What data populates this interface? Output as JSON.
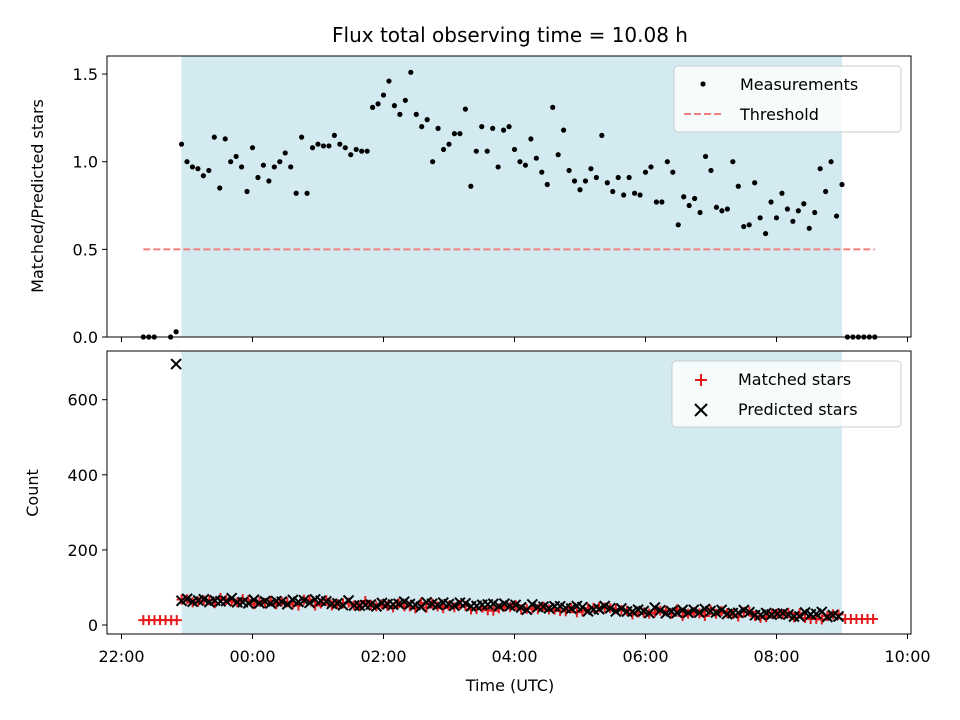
{
  "chart_data": [
    {
      "type": "scatter",
      "title": "Flux total observing time = 10.08 h",
      "xlabel": "",
      "ylabel": "Matched/Predicted stars",
      "xlim": [
        "22:00",
        "10:00"
      ],
      "ylim": [
        0,
        1.6
      ],
      "yticks": [
        "0.0",
        "0.5",
        "1.0",
        "1.5"
      ],
      "shaded_interval": [
        "22:55",
        "09:00"
      ],
      "shade_color": "#d3eaf1",
      "legend_placement": "upper-right",
      "threshold": {
        "name": "Threshold",
        "value": 0.5,
        "x_range": [
          "22:20",
          "09:30"
        ],
        "color": "#f08080"
      },
      "series": [
        {
          "name": "Measurements",
          "color": "#000000",
          "points": [
            [
              "22:20",
              0.0
            ],
            [
              "22:25",
              0.0
            ],
            [
              "22:30",
              0.0
            ],
            [
              "22:45",
              0.0
            ],
            [
              "22:50",
              0.03
            ],
            [
              "22:55",
              1.1
            ],
            [
              "23:00",
              1.0
            ],
            [
              "23:05",
              0.97
            ],
            [
              "23:10",
              0.96
            ],
            [
              "23:15",
              0.92
            ],
            [
              "23:20",
              0.95
            ],
            [
              "23:25",
              1.14
            ],
            [
              "23:30",
              0.85
            ],
            [
              "23:35",
              1.13
            ],
            [
              "23:40",
              1.0
            ],
            [
              "23:45",
              1.03
            ],
            [
              "23:50",
              0.97
            ],
            [
              "23:55",
              0.83
            ],
            [
              "00:00",
              1.08
            ],
            [
              "00:05",
              0.91
            ],
            [
              "00:10",
              0.98
            ],
            [
              "00:15",
              0.89
            ],
            [
              "00:20",
              0.97
            ],
            [
              "00:25",
              1.0
            ],
            [
              "00:30",
              1.05
            ],
            [
              "00:35",
              0.97
            ],
            [
              "00:40",
              0.82
            ],
            [
              "00:45",
              1.14
            ],
            [
              "00:50",
              0.82
            ],
            [
              "00:55",
              1.08
            ],
            [
              "01:00",
              1.1
            ],
            [
              "01:05",
              1.09
            ],
            [
              "01:10",
              1.09
            ],
            [
              "01:15",
              1.15
            ],
            [
              "01:20",
              1.1
            ],
            [
              "01:25",
              1.08
            ],
            [
              "01:30",
              1.04
            ],
            [
              "01:35",
              1.07
            ],
            [
              "01:40",
              1.06
            ],
            [
              "01:45",
              1.06
            ],
            [
              "01:50",
              1.31
            ],
            [
              "01:55",
              1.33
            ],
            [
              "02:00",
              1.38
            ],
            [
              "02:05",
              1.46
            ],
            [
              "02:10",
              1.32
            ],
            [
              "02:15",
              1.27
            ],
            [
              "02:20",
              1.35
            ],
            [
              "02:25",
              1.51
            ],
            [
              "02:30",
              1.27
            ],
            [
              "02:35",
              1.2
            ],
            [
              "02:40",
              1.24
            ],
            [
              "02:45",
              1.0
            ],
            [
              "02:50",
              1.19
            ],
            [
              "02:55",
              1.07
            ],
            [
              "03:00",
              1.1
            ],
            [
              "03:05",
              1.16
            ],
            [
              "03:10",
              1.16
            ],
            [
              "03:15",
              1.3
            ],
            [
              "03:20",
              0.86
            ],
            [
              "03:25",
              1.06
            ],
            [
              "03:30",
              1.2
            ],
            [
              "03:35",
              1.06
            ],
            [
              "03:40",
              1.19
            ],
            [
              "03:45",
              0.97
            ],
            [
              "03:50",
              1.18
            ],
            [
              "03:55",
              1.2
            ],
            [
              "04:00",
              1.07
            ],
            [
              "04:05",
              1.0
            ],
            [
              "04:10",
              0.98
            ],
            [
              "04:15",
              1.13
            ],
            [
              "04:20",
              1.02
            ],
            [
              "04:25",
              0.94
            ],
            [
              "04:30",
              0.87
            ],
            [
              "04:35",
              1.31
            ],
            [
              "04:40",
              1.04
            ],
            [
              "04:45",
              1.18
            ],
            [
              "04:50",
              0.95
            ],
            [
              "04:55",
              0.89
            ],
            [
              "05:00",
              0.84
            ],
            [
              "05:05",
              0.89
            ],
            [
              "05:10",
              0.96
            ],
            [
              "05:15",
              0.91
            ],
            [
              "05:20",
              1.15
            ],
            [
              "05:25",
              0.88
            ],
            [
              "05:30",
              0.83
            ],
            [
              "05:35",
              0.91
            ],
            [
              "05:40",
              0.81
            ],
            [
              "05:45",
              0.91
            ],
            [
              "05:50",
              0.82
            ],
            [
              "05:55",
              0.81
            ],
            [
              "06:00",
              0.94
            ],
            [
              "06:05",
              0.97
            ],
            [
              "06:10",
              0.77
            ],
            [
              "06:15",
              0.77
            ],
            [
              "06:20",
              1.0
            ],
            [
              "06:25",
              0.94
            ],
            [
              "06:30",
              0.64
            ],
            [
              "06:35",
              0.8
            ],
            [
              "06:40",
              0.75
            ],
            [
              "06:45",
              0.79
            ],
            [
              "06:50",
              0.71
            ],
            [
              "06:55",
              1.03
            ],
            [
              "07:00",
              0.95
            ],
            [
              "07:05",
              0.74
            ],
            [
              "07:10",
              0.72
            ],
            [
              "07:15",
              0.73
            ],
            [
              "07:20",
              1.0
            ],
            [
              "07:25",
              0.86
            ],
            [
              "07:30",
              0.63
            ],
            [
              "07:35",
              0.64
            ],
            [
              "07:40",
              0.88
            ],
            [
              "07:45",
              0.68
            ],
            [
              "07:50",
              0.59
            ],
            [
              "07:55",
              0.77
            ],
            [
              "08:00",
              0.68
            ],
            [
              "08:05",
              0.82
            ],
            [
              "08:10",
              0.73
            ],
            [
              "08:15",
              0.66
            ],
            [
              "08:20",
              0.72
            ],
            [
              "08:25",
              0.76
            ],
            [
              "08:30",
              0.62
            ],
            [
              "08:35",
              0.71
            ],
            [
              "08:40",
              0.96
            ],
            [
              "08:45",
              0.83
            ],
            [
              "08:50",
              1.0
            ],
            [
              "08:55",
              0.69
            ],
            [
              "09:00",
              0.87
            ],
            [
              "09:05",
              0.0
            ],
            [
              "09:10",
              0.0
            ],
            [
              "09:15",
              0.0
            ],
            [
              "09:20",
              0.0
            ],
            [
              "09:25",
              0.0
            ],
            [
              "09:30",
              0.0
            ]
          ]
        }
      ]
    },
    {
      "type": "scatter",
      "title": "",
      "xlabel": "Time (UTC)",
      "ylabel": "Count",
      "xlim": [
        "22:00",
        "10:00"
      ],
      "xticks": [
        "22:00",
        "00:00",
        "02:00",
        "04:00",
        "06:00",
        "08:00",
        "10:00"
      ],
      "ylim": [
        0,
        700
      ],
      "yticks": [
        "0",
        "200",
        "400",
        "600"
      ],
      "shaded_interval": [
        "22:55",
        "09:00"
      ],
      "shade_color": "#d3eaf1",
      "legend_placement": "upper-right",
      "series": [
        {
          "name": "Matched stars",
          "marker": "+",
          "color": "#e41a1c"
        },
        {
          "name": "Predicted stars",
          "marker": "x",
          "color": "#000000",
          "outlier": [
            "22:50",
            695
          ]
        }
      ],
      "trend": {
        "predicted_start": [
          "22:55",
          70
        ],
        "predicted_end": [
          "09:00",
          27
        ],
        "matched_start": [
          "22:55",
          68
        ],
        "matched_end": [
          "09:00",
          22
        ],
        "matched_outside_before": [
          "22:20",
          13
        ],
        "matched_outside_after": [
          "09:30",
          16
        ]
      }
    }
  ]
}
